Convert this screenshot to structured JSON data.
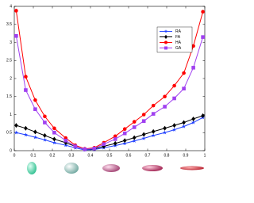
{
  "chart_data": {
    "type": "line",
    "x": [
      0.01,
      0.06,
      0.11,
      0.16,
      0.21,
      0.27,
      0.32,
      0.37,
      0.42,
      0.47,
      0.53,
      0.58,
      0.63,
      0.68,
      0.73,
      0.79,
      0.84,
      0.89,
      0.94,
      0.99
    ],
    "series": [
      {
        "name": "RA",
        "color": "#1f3fff",
        "marker": "star",
        "values": [
          0.5,
          0.44,
          0.37,
          0.3,
          0.22,
          0.15,
          0.08,
          0.02,
          0.03,
          0.08,
          0.14,
          0.2,
          0.27,
          0.34,
          0.42,
          0.5,
          0.58,
          0.67,
          0.78,
          0.92
        ]
      },
      {
        "name": "FA",
        "color": "#000000",
        "marker": "diamond",
        "values": [
          0.7,
          0.62,
          0.52,
          0.42,
          0.32,
          0.22,
          0.12,
          0.04,
          0.05,
          0.12,
          0.2,
          0.28,
          0.36,
          0.45,
          0.53,
          0.62,
          0.7,
          0.78,
          0.88,
          0.97
        ]
      },
      {
        "name": "HA",
        "color": "#ff0000",
        "marker": "circle",
        "values": [
          3.88,
          2.05,
          1.4,
          0.95,
          0.62,
          0.35,
          0.15,
          0.05,
          0.08,
          0.22,
          0.4,
          0.6,
          0.8,
          1.0,
          1.25,
          1.5,
          1.8,
          2.15,
          2.9,
          3.85
        ]
      },
      {
        "name": "GA",
        "color": "#a040f0",
        "marker": "square",
        "values": [
          3.18,
          1.68,
          1.15,
          0.78,
          0.5,
          0.28,
          0.12,
          0.04,
          0.06,
          0.18,
          0.32,
          0.48,
          0.65,
          0.82,
          1.02,
          1.22,
          1.45,
          1.72,
          2.3,
          3.15
        ]
      }
    ],
    "xlim": [
      0,
      1
    ],
    "xticks": [
      0,
      0.1,
      0.2,
      0.3,
      0.4,
      0.5,
      0.6,
      0.7,
      0.8,
      0.9,
      1
    ],
    "ylim": [
      0,
      4
    ],
    "yticks": [
      0,
      0.5,
      1,
      1.5,
      2,
      2.5,
      3,
      3.5,
      4
    ],
    "legend": "upper-right"
  }
}
